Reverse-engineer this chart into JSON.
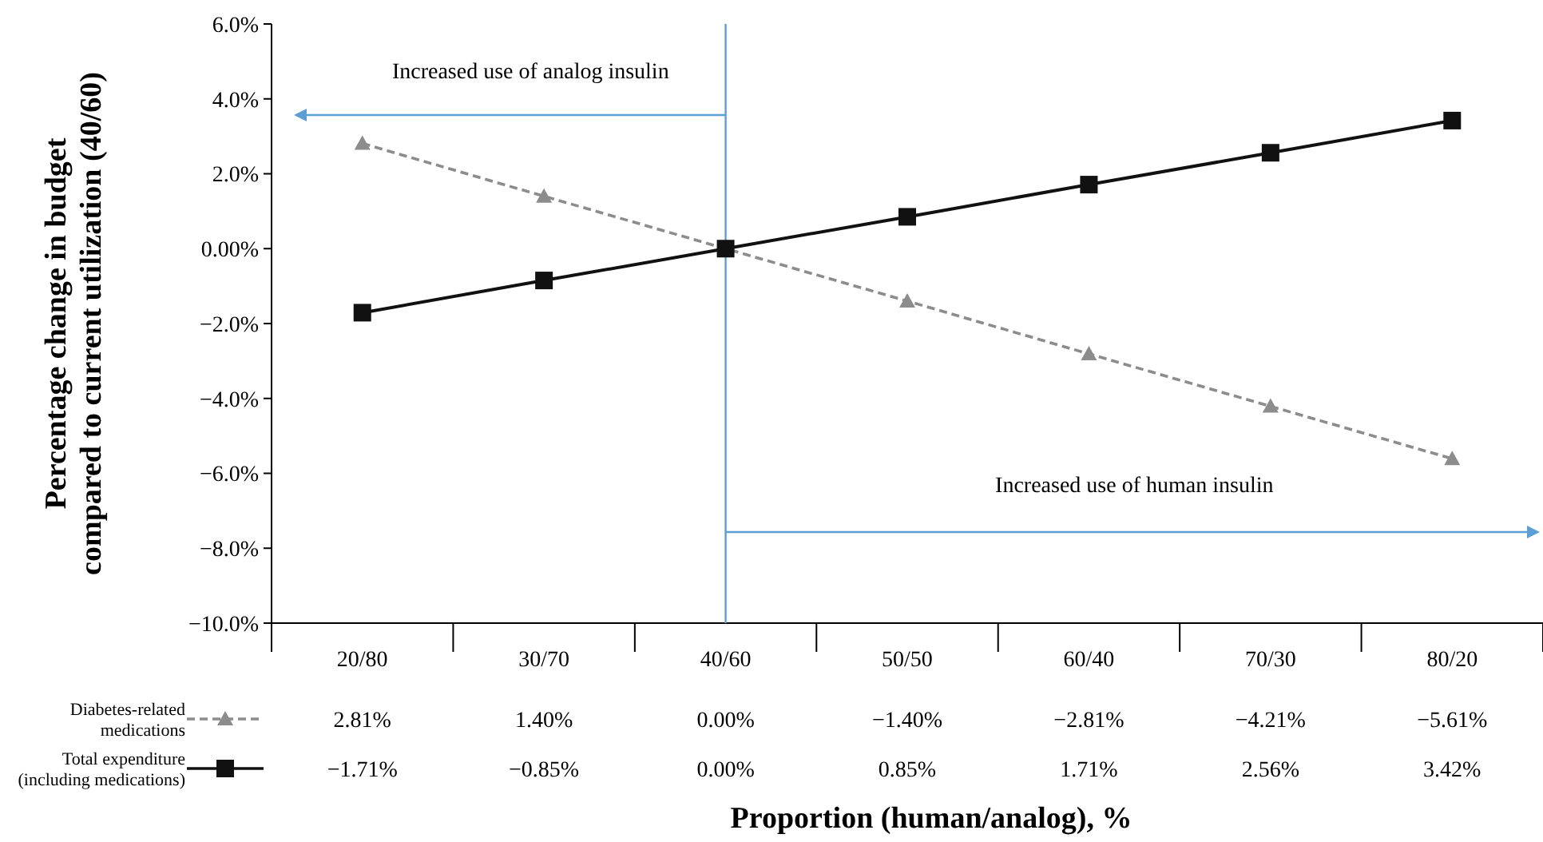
{
  "chart_data": {
    "type": "line",
    "xlabel": "Proportion (human/analog), %",
    "ylabel": "Percentage change in budget\ncompared to current utilization (40/60)",
    "categories": [
      "20/80",
      "30/70",
      "40/60",
      "50/50",
      "60/40",
      "70/30",
      "80/20"
    ],
    "series": [
      {
        "name": "Diabetes-related\nmedications",
        "color": "#8c8c8c",
        "marker": "triangle",
        "line_style": "dashed",
        "values": [
          2.81,
          1.4,
          0.0,
          -1.4,
          -2.81,
          -4.21,
          -5.61
        ],
        "value_labels": [
          "2.81%",
          "1.40%",
          "0.00%",
          "−1.40%",
          "−2.81%",
          "−4.21%",
          "−5.61%"
        ]
      },
      {
        "name": "Total expenditure\n(including medications)",
        "color": "#111111",
        "marker": "square",
        "line_style": "solid",
        "values": [
          -1.71,
          -0.85,
          0.0,
          0.85,
          1.71,
          2.56,
          3.42
        ],
        "value_labels": [
          "−1.71%",
          "−0.85%",
          "0.00%",
          "0.85%",
          "1.71%",
          "2.56%",
          "3.42%"
        ]
      }
    ],
    "ylim": [
      -10,
      6
    ],
    "yticks": [
      {
        "value": 6,
        "label": "6.0%"
      },
      {
        "value": 4,
        "label": "4.0%"
      },
      {
        "value": 2,
        "label": "2.0%"
      },
      {
        "value": 0,
        "label": "0.00%"
      },
      {
        "value": -2,
        "label": "−2.0%"
      },
      {
        "value": -4,
        "label": "−4.0%"
      },
      {
        "value": -6,
        "label": "−6.0%"
      },
      {
        "value": -8,
        "label": "−8.0%"
      },
      {
        "value": -10,
        "label": "−10.0%"
      }
    ],
    "ref_lines": [
      {
        "axis": "x",
        "value": "40/60",
        "color": "#5b9fd4"
      }
    ],
    "annotations": [
      "Increased use of analog insulin",
      "Increased use of human insulin"
    ],
    "legend": "bottom left",
    "grid": false
  }
}
